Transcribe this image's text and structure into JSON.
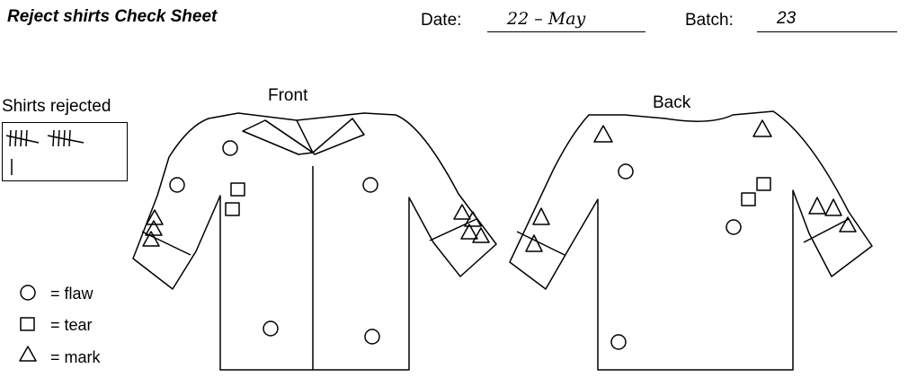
{
  "header": {
    "title": "Reject shirts Check Sheet",
    "date_label": "Date:",
    "date_value": "22 – May",
    "batch_label": "Batch:",
    "batch_value": "23"
  },
  "views": {
    "front_label": "Front",
    "back_label": "Back"
  },
  "tally": {
    "label": "Shirts rejected",
    "count": 11
  },
  "legend": [
    {
      "symbol": "circle",
      "label": "= flaw"
    },
    {
      "symbol": "square",
      "label": "= tear"
    },
    {
      "symbol": "triangle",
      "label": "= mark"
    }
  ],
  "defect_counts": {
    "front": {
      "flaw": 5,
      "tear": 2,
      "mark": 7
    },
    "back": {
      "flaw": 3,
      "tear": 2,
      "mark": 7
    }
  },
  "colors": {
    "ink": "#000000",
    "paper": "#ffffff"
  }
}
